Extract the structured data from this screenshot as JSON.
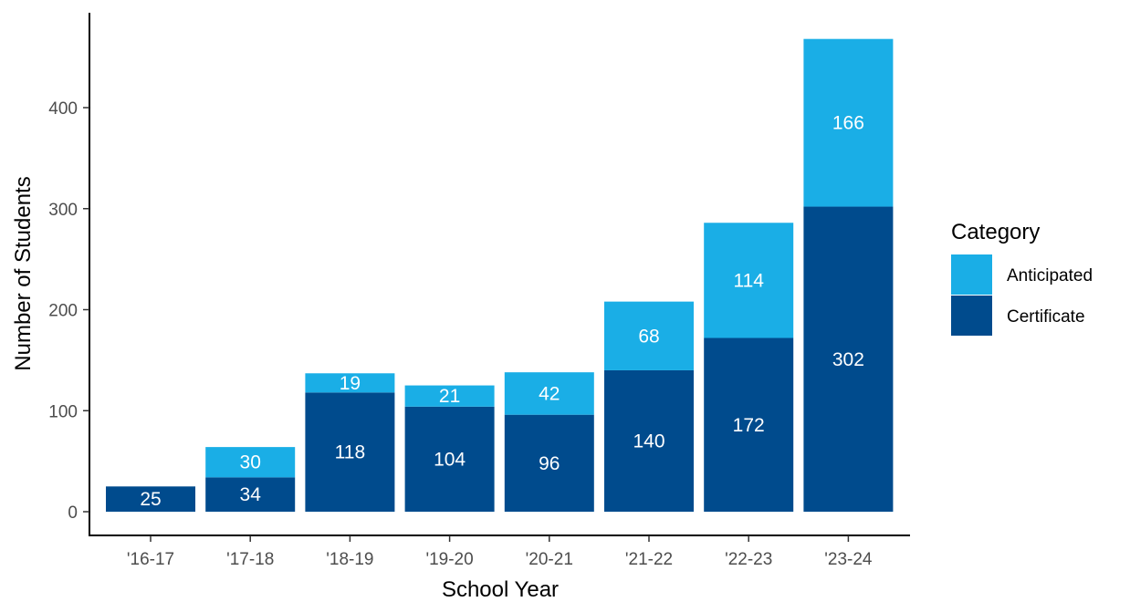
{
  "chart_data": {
    "type": "bar",
    "stacked": true,
    "categories": [
      "'16-17",
      "'17-18",
      "'18-19",
      "'19-20",
      "'20-21",
      "'21-22",
      "'22-23",
      "'23-24"
    ],
    "series": [
      {
        "name": "Certificate",
        "color": "#004b8d",
        "values": [
          25,
          34,
          118,
          104,
          96,
          140,
          172,
          302
        ]
      },
      {
        "name": "Anticipated",
        "color": "#1aaee6",
        "values": [
          null,
          30,
          19,
          21,
          42,
          68,
          114,
          166
        ]
      }
    ],
    "xlabel": "School Year",
    "ylabel": "Number of Students",
    "ylim": [
      0,
      470
    ],
    "yticks": [
      0,
      100,
      200,
      300,
      400
    ],
    "grid": false,
    "legend": {
      "title": "Category",
      "position": "right",
      "entries": [
        {
          "label": "Anticipated",
          "color": "#1aaee6"
        },
        {
          "label": "Certificate",
          "color": "#004b8d"
        }
      ]
    }
  }
}
